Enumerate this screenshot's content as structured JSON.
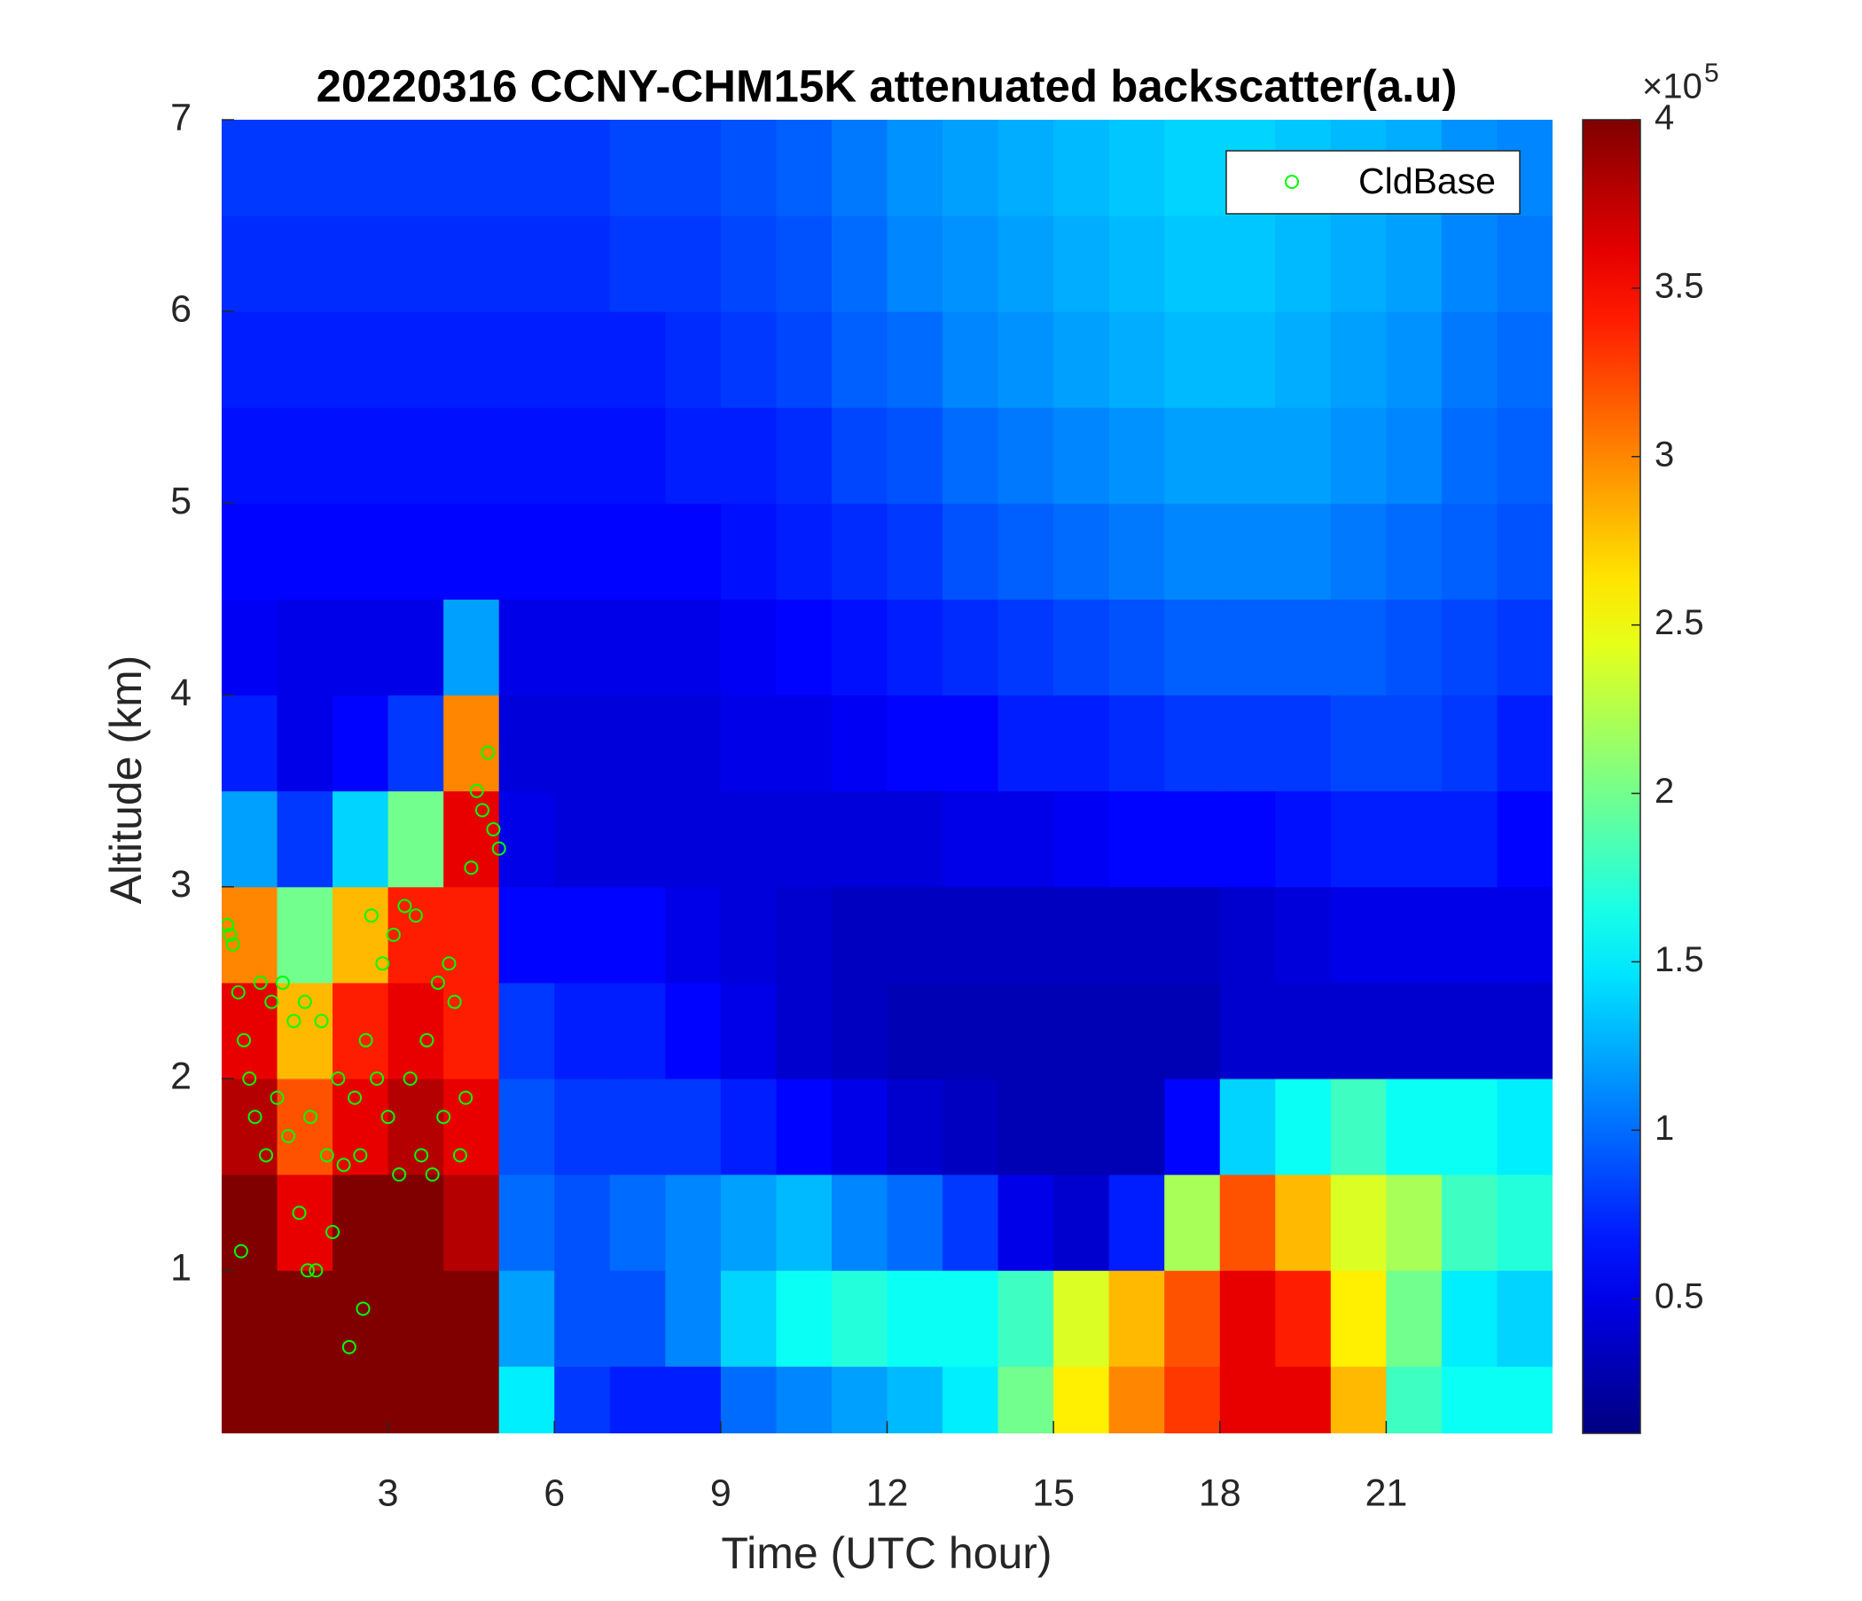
{
  "chart_data": {
    "type": "heatmap",
    "title": "20220316 CCNY-CHM15K attenuated backscatter(a.u)",
    "x_label": "Time (UTC hour)",
    "y_label": "Altitude (km)",
    "xlim": [
      0,
      24
    ],
    "ylim": [
      0.15,
      7
    ],
    "xticks": [
      3,
      6,
      9,
      12,
      15,
      18,
      21
    ],
    "yticks": [
      1,
      2,
      3,
      4,
      5,
      6,
      7
    ],
    "colormap": "jet",
    "clim": [
      0.1,
      4
    ],
    "cticks": [
      0.5,
      1,
      1.5,
      2,
      2.5,
      3,
      3.5,
      4
    ],
    "colorbar_multiplier": "×10",
    "colorbar_exponent": "5",
    "legend": "northeast",
    "heatmap": {
      "x": [
        0.5,
        1.5,
        2.5,
        3.5,
        4.5,
        5.5,
        6.5,
        7.5,
        8.5,
        9.5,
        10.5,
        11.5,
        12.5,
        13.5,
        14.5,
        15.5,
        16.5,
        17.5,
        18.5,
        19.5,
        20.5,
        21.5,
        22.5,
        23.5
      ],
      "y": [
        0.25,
        0.75,
        1.25,
        1.75,
        2.25,
        2.75,
        3.25,
        3.75,
        4.25,
        4.75,
        5.25,
        5.75,
        6.25,
        6.75
      ],
      "z": [
        [
          4,
          4,
          4,
          4,
          4,
          1.5,
          0.8,
          0.7,
          0.7,
          1.0,
          1.1,
          1.2,
          1.3,
          1.5,
          2.0,
          2.6,
          3.0,
          3.3,
          3.6,
          3.6,
          2.8,
          1.8,
          1.6,
          1.6
        ],
        [
          4,
          4,
          4,
          4,
          4,
          1.2,
          0.9,
          0.9,
          1.1,
          1.4,
          1.6,
          1.7,
          1.6,
          1.6,
          1.8,
          2.4,
          2.8,
          3.2,
          3.6,
          3.4,
          2.6,
          2.0,
          1.5,
          1.4
        ],
        [
          4,
          3.6,
          4,
          4,
          3.8,
          1.0,
          0.9,
          1.0,
          1.1,
          1.2,
          1.3,
          1.1,
          1.0,
          0.8,
          0.5,
          0.4,
          0.7,
          2.2,
          3.2,
          2.8,
          2.4,
          2.2,
          1.8,
          1.7
        ],
        [
          3.8,
          3.2,
          3.6,
          3.8,
          3.6,
          0.9,
          0.8,
          0.8,
          0.8,
          0.7,
          0.6,
          0.5,
          0.4,
          0.35,
          0.3,
          0.3,
          0.3,
          0.6,
          1.4,
          1.6,
          1.8,
          1.6,
          1.6,
          1.5
        ],
        [
          3.6,
          2.8,
          3.4,
          3.6,
          3.4,
          0.8,
          0.7,
          0.7,
          0.6,
          0.5,
          0.4,
          0.35,
          0.3,
          0.3,
          0.3,
          0.3,
          0.3,
          0.3,
          0.4,
          0.4,
          0.4,
          0.4,
          0.4,
          0.4
        ],
        [
          3.0,
          2.0,
          2.8,
          3.4,
          3.4,
          0.6,
          0.6,
          0.6,
          0.5,
          0.45,
          0.4,
          0.35,
          0.35,
          0.35,
          0.35,
          0.35,
          0.35,
          0.35,
          0.4,
          0.45,
          0.5,
          0.5,
          0.5,
          0.5
        ],
        [
          1.2,
          0.8,
          1.4,
          2.0,
          3.6,
          0.5,
          0.45,
          0.45,
          0.45,
          0.45,
          0.45,
          0.45,
          0.45,
          0.5,
          0.5,
          0.55,
          0.6,
          0.6,
          0.6,
          0.65,
          0.7,
          0.7,
          0.7,
          0.6
        ],
        [
          0.7,
          0.5,
          0.6,
          0.8,
          3.0,
          0.45,
          0.45,
          0.45,
          0.45,
          0.5,
          0.5,
          0.55,
          0.6,
          0.6,
          0.7,
          0.7,
          0.75,
          0.8,
          0.8,
          0.8,
          0.85,
          0.85,
          0.8,
          0.7
        ],
        [
          0.55,
          0.5,
          0.5,
          0.5,
          1.2,
          0.5,
          0.5,
          0.5,
          0.5,
          0.55,
          0.6,
          0.65,
          0.7,
          0.75,
          0.8,
          0.85,
          0.9,
          0.95,
          0.95,
          0.95,
          0.95,
          0.9,
          0.85,
          0.8
        ],
        [
          0.6,
          0.6,
          0.6,
          0.6,
          0.6,
          0.6,
          0.6,
          0.6,
          0.6,
          0.65,
          0.7,
          0.75,
          0.8,
          0.9,
          0.95,
          1.0,
          1.05,
          1.1,
          1.1,
          1.1,
          1.05,
          1.0,
          0.95,
          0.9
        ],
        [
          0.65,
          0.65,
          0.65,
          0.65,
          0.65,
          0.65,
          0.65,
          0.65,
          0.7,
          0.7,
          0.75,
          0.85,
          0.9,
          1.0,
          1.05,
          1.1,
          1.15,
          1.2,
          1.2,
          1.2,
          1.15,
          1.1,
          1.0,
          0.95
        ],
        [
          0.7,
          0.7,
          0.7,
          0.7,
          0.7,
          0.7,
          0.7,
          0.7,
          0.75,
          0.8,
          0.85,
          0.95,
          1.0,
          1.1,
          1.15,
          1.2,
          1.25,
          1.3,
          1.3,
          1.25,
          1.2,
          1.15,
          1.05,
          1.0
        ],
        [
          0.75,
          0.75,
          0.75,
          0.75,
          0.75,
          0.75,
          0.75,
          0.8,
          0.8,
          0.85,
          0.9,
          1.0,
          1.1,
          1.15,
          1.2,
          1.25,
          1.3,
          1.35,
          1.35,
          1.3,
          1.25,
          1.2,
          1.1,
          1.05
        ],
        [
          0.8,
          0.8,
          0.8,
          0.8,
          0.8,
          0.8,
          0.8,
          0.85,
          0.85,
          0.9,
          0.95,
          1.05,
          1.15,
          1.2,
          1.25,
          1.3,
          1.35,
          1.4,
          1.4,
          1.35,
          1.3,
          1.25,
          1.15,
          1.1
        ]
      ]
    },
    "series": [
      {
        "name": "CldBase",
        "color": "#00ff00",
        "x": [
          0.1,
          0.15,
          0.2,
          0.3,
          0.4,
          0.5,
          0.6,
          0.7,
          0.8,
          0.9,
          1.0,
          1.1,
          1.2,
          1.3,
          1.4,
          1.5,
          1.6,
          1.7,
          1.8,
          1.9,
          2.0,
          2.1,
          2.2,
          2.3,
          2.4,
          2.5,
          2.6,
          2.7,
          2.8,
          2.9,
          3.0,
          3.1,
          3.2,
          3.3,
          3.4,
          3.5,
          3.6,
          3.7,
          3.8,
          3.9,
          4.0,
          4.1,
          4.2,
          4.3,
          4.4,
          4.5,
          4.6,
          4.7,
          4.8,
          4.9,
          5.0,
          0.35,
          1.55,
          2.55
        ],
        "y": [
          2.8,
          2.75,
          2.7,
          2.45,
          2.2,
          2.0,
          1.8,
          2.5,
          1.6,
          2.4,
          1.9,
          2.5,
          1.7,
          2.3,
          1.3,
          2.4,
          1.8,
          1.0,
          2.3,
          1.6,
          1.2,
          2.0,
          1.55,
          0.6,
          1.9,
          1.6,
          2.2,
          2.85,
          2.0,
          2.6,
          1.8,
          2.75,
          1.5,
          2.9,
          2.0,
          2.85,
          1.6,
          2.2,
          1.5,
          2.5,
          1.8,
          2.6,
          2.4,
          1.6,
          1.9,
          3.1,
          3.5,
          3.4,
          3.7,
          3.3,
          3.2,
          1.1,
          1.0,
          0.8
        ]
      }
    ]
  }
}
